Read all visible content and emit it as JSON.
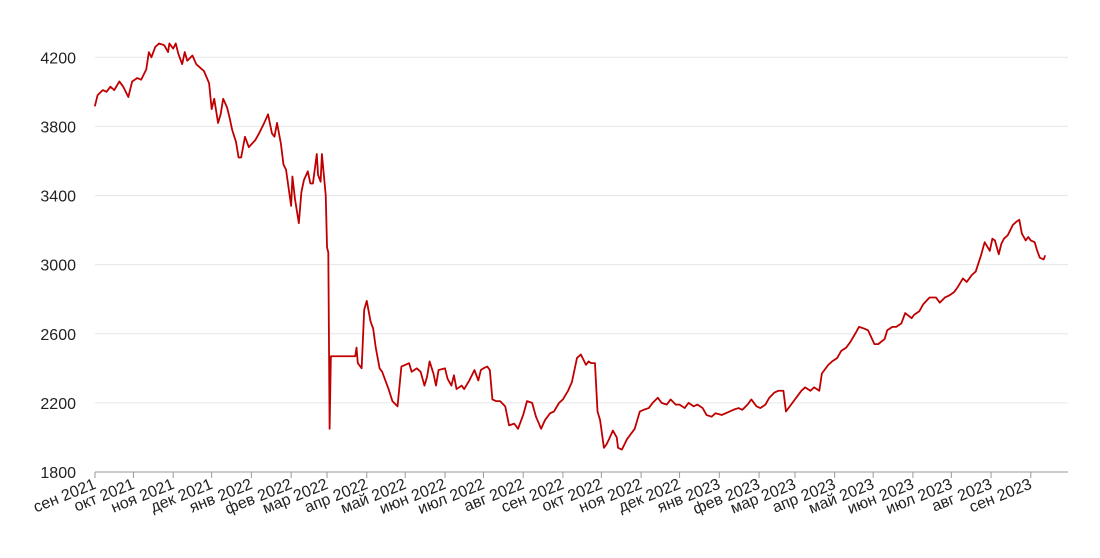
{
  "chart_data": {
    "type": "line",
    "title": "",
    "xlabel": "",
    "ylabel": "",
    "ylim": [
      1800,
      4300
    ],
    "yticks": [
      1800,
      2200,
      2600,
      3000,
      3400,
      3800,
      4200
    ],
    "y_tick_labels": [
      "1800",
      "2200",
      "2600",
      "3000",
      "3400",
      "3800",
      "4200"
    ],
    "x_range": [
      "2021-09-01",
      "2023-09-30"
    ],
    "x_tick_dates": [
      "2021-09-01",
      "2021-10-01",
      "2021-11-01",
      "2021-12-01",
      "2022-01-01",
      "2022-02-01",
      "2022-03-01",
      "2022-04-01",
      "2022-05-01",
      "2022-06-01",
      "2022-07-01",
      "2022-08-01",
      "2022-09-01",
      "2022-10-01",
      "2022-11-01",
      "2022-12-01",
      "2023-01-01",
      "2023-02-01",
      "2023-03-01",
      "2023-04-01",
      "2023-05-01",
      "2023-06-01",
      "2023-07-01",
      "2023-08-01",
      "2023-09-01"
    ],
    "x_tick_labels": [
      "сен 2021",
      "окт 2021",
      "ноя 2021",
      "дек 2021",
      "янв 2022",
      "фев 2022",
      "мар 2022",
      "апр 2022",
      "май 2022",
      "июн 2022",
      "июл 2022",
      "авг 2022",
      "сен 2022",
      "окт 2022",
      "ноя 2022",
      "дек 2022",
      "янв 2023",
      "фев 2023",
      "мар 2023",
      "апр 2023",
      "май 2023",
      "июн 2023",
      "июл 2023",
      "авг 2023",
      "сен 2023"
    ],
    "grid": true,
    "legend": "none",
    "series": [
      {
        "color": "#c00000",
        "points": [
          [
            "2021-09-01",
            3920
          ],
          [
            "2021-09-03",
            3980
          ],
          [
            "2021-09-07",
            4010
          ],
          [
            "2021-09-10",
            4000
          ],
          [
            "2021-09-13",
            4030
          ],
          [
            "2021-09-16",
            4010
          ],
          [
            "2021-09-20",
            4060
          ],
          [
            "2021-09-23",
            4030
          ],
          [
            "2021-09-27",
            3970
          ],
          [
            "2021-09-30",
            4060
          ],
          [
            "2021-10-04",
            4080
          ],
          [
            "2021-10-07",
            4070
          ],
          [
            "2021-10-11",
            4130
          ],
          [
            "2021-10-13",
            4230
          ],
          [
            "2021-10-15",
            4200
          ],
          [
            "2021-10-18",
            4260
          ],
          [
            "2021-10-21",
            4280
          ],
          [
            "2021-10-25",
            4270
          ],
          [
            "2021-10-28",
            4230
          ],
          [
            "2021-10-29",
            4280
          ],
          [
            "2021-11-01",
            4250
          ],
          [
            "2021-11-03",
            4280
          ],
          [
            "2021-11-05",
            4220
          ],
          [
            "2021-11-08",
            4160
          ],
          [
            "2021-11-10",
            4230
          ],
          [
            "2021-11-12",
            4180
          ],
          [
            "2021-11-16",
            4210
          ],
          [
            "2021-11-19",
            4160
          ],
          [
            "2021-11-22",
            4140
          ],
          [
            "2021-11-25",
            4120
          ],
          [
            "2021-11-29",
            4050
          ],
          [
            "2021-12-01",
            3900
          ],
          [
            "2021-12-03",
            3960
          ],
          [
            "2021-12-06",
            3820
          ],
          [
            "2021-12-08",
            3870
          ],
          [
            "2021-12-10",
            3960
          ],
          [
            "2021-12-13",
            3910
          ],
          [
            "2021-12-15",
            3850
          ],
          [
            "2021-12-17",
            3780
          ],
          [
            "2021-12-20",
            3710
          ],
          [
            "2021-12-22",
            3620
          ],
          [
            "2021-12-24",
            3620
          ],
          [
            "2021-12-27",
            3740
          ],
          [
            "2021-12-30",
            3680
          ],
          [
            "2022-01-04",
            3720
          ],
          [
            "2022-01-07",
            3760
          ],
          [
            "2022-01-11",
            3820
          ],
          [
            "2022-01-14",
            3870
          ],
          [
            "2022-01-17",
            3760
          ],
          [
            "2022-01-19",
            3740
          ],
          [
            "2022-01-21",
            3820
          ],
          [
            "2022-01-24",
            3700
          ],
          [
            "2022-01-26",
            3580
          ],
          [
            "2022-01-28",
            3550
          ],
          [
            "2022-02-01",
            3340
          ],
          [
            "2022-02-02",
            3510
          ],
          [
            "2022-02-04",
            3380
          ],
          [
            "2022-02-07",
            3240
          ],
          [
            "2022-02-09",
            3420
          ],
          [
            "2022-02-11",
            3490
          ],
          [
            "2022-02-14",
            3540
          ],
          [
            "2022-02-16",
            3470
          ],
          [
            "2022-02-18",
            3470
          ],
          [
            "2022-02-21",
            3640
          ],
          [
            "2022-02-22",
            3520
          ],
          [
            "2022-02-24",
            3480
          ],
          [
            "2022-02-25",
            3640
          ],
          [
            "2022-02-28",
            3400
          ],
          [
            "2022-03-01",
            3100
          ],
          [
            "2022-03-02",
            3070
          ],
          [
            "2022-03-03",
            2050
          ],
          [
            "2022-03-04",
            2470
          ],
          [
            "2022-03-10",
            2470
          ],
          [
            "2022-03-20",
            2470
          ],
          [
            "2022-03-23",
            2470
          ],
          [
            "2022-03-24",
            2520
          ],
          [
            "2022-03-25",
            2430
          ],
          [
            "2022-03-28",
            2400
          ],
          [
            "2022-03-30",
            2740
          ],
          [
            "2022-04-01",
            2790
          ],
          [
            "2022-04-04",
            2670
          ],
          [
            "2022-04-06",
            2630
          ],
          [
            "2022-04-08",
            2520
          ],
          [
            "2022-04-11",
            2400
          ],
          [
            "2022-04-13",
            2380
          ],
          [
            "2022-04-15",
            2340
          ],
          [
            "2022-04-18",
            2280
          ],
          [
            "2022-04-21",
            2210
          ],
          [
            "2022-04-25",
            2180
          ],
          [
            "2022-04-28",
            2410
          ],
          [
            "2022-05-04",
            2430
          ],
          [
            "2022-05-06",
            2380
          ],
          [
            "2022-05-10",
            2400
          ],
          [
            "2022-05-13",
            2380
          ],
          [
            "2022-05-16",
            2300
          ],
          [
            "2022-05-18",
            2350
          ],
          [
            "2022-05-20",
            2440
          ],
          [
            "2022-05-23",
            2370
          ],
          [
            "2022-05-25",
            2300
          ],
          [
            "2022-05-27",
            2390
          ],
          [
            "2022-06-01",
            2400
          ],
          [
            "2022-06-03",
            2340
          ],
          [
            "2022-06-06",
            2300
          ],
          [
            "2022-06-08",
            2360
          ],
          [
            "2022-06-10",
            2280
          ],
          [
            "2022-06-14",
            2300
          ],
          [
            "2022-06-16",
            2280
          ],
          [
            "2022-06-20",
            2330
          ],
          [
            "2022-06-22",
            2360
          ],
          [
            "2022-06-24",
            2390
          ],
          [
            "2022-06-27",
            2330
          ],
          [
            "2022-06-29",
            2390
          ],
          [
            "2022-07-01",
            2400
          ],
          [
            "2022-07-04",
            2410
          ],
          [
            "2022-07-06",
            2390
          ],
          [
            "2022-07-08",
            2220
          ],
          [
            "2022-07-11",
            2210
          ],
          [
            "2022-07-14",
            2210
          ],
          [
            "2022-07-18",
            2180
          ],
          [
            "2022-07-21",
            2070
          ],
          [
            "2022-07-25",
            2080
          ],
          [
            "2022-07-28",
            2050
          ],
          [
            "2022-08-01",
            2130
          ],
          [
            "2022-08-04",
            2210
          ],
          [
            "2022-08-08",
            2200
          ],
          [
            "2022-08-11",
            2120
          ],
          [
            "2022-08-15",
            2050
          ],
          [
            "2022-08-18",
            2100
          ],
          [
            "2022-08-22",
            2140
          ],
          [
            "2022-08-25",
            2150
          ],
          [
            "2022-08-29",
            2200
          ],
          [
            "2022-09-01",
            2220
          ],
          [
            "2022-09-05",
            2270
          ],
          [
            "2022-09-08",
            2320
          ],
          [
            "2022-09-12",
            2460
          ],
          [
            "2022-09-15",
            2480
          ],
          [
            "2022-09-19",
            2420
          ],
          [
            "2022-09-21",
            2440
          ],
          [
            "2022-09-23",
            2430
          ],
          [
            "2022-09-26",
            2430
          ],
          [
            "2022-09-28",
            2150
          ],
          [
            "2022-09-30",
            2100
          ],
          [
            "2022-10-03",
            1940
          ],
          [
            "2022-10-05",
            1960
          ],
          [
            "2022-10-07",
            1990
          ],
          [
            "2022-10-10",
            2040
          ],
          [
            "2022-10-13",
            2000
          ],
          [
            "2022-10-14",
            1940
          ],
          [
            "2022-10-17",
            1930
          ],
          [
            "2022-10-19",
            1960
          ],
          [
            "2022-10-21",
            1990
          ],
          [
            "2022-10-24",
            2020
          ],
          [
            "2022-10-27",
            2050
          ],
          [
            "2022-10-31",
            2150
          ],
          [
            "2022-11-03",
            2160
          ],
          [
            "2022-11-07",
            2170
          ],
          [
            "2022-11-10",
            2200
          ],
          [
            "2022-11-14",
            2230
          ],
          [
            "2022-11-17",
            2200
          ],
          [
            "2022-11-21",
            2190
          ],
          [
            "2022-11-24",
            2220
          ],
          [
            "2022-11-28",
            2190
          ],
          [
            "2022-12-01",
            2190
          ],
          [
            "2022-12-05",
            2170
          ],
          [
            "2022-12-08",
            2200
          ],
          [
            "2022-12-12",
            2180
          ],
          [
            "2022-12-15",
            2190
          ],
          [
            "2022-12-19",
            2170
          ],
          [
            "2022-12-22",
            2130
          ],
          [
            "2022-12-26",
            2120
          ],
          [
            "2022-12-29",
            2140
          ],
          [
            "2023-01-03",
            2130
          ],
          [
            "2023-01-09",
            2150
          ],
          [
            "2023-01-12",
            2160
          ],
          [
            "2023-01-16",
            2170
          ],
          [
            "2023-01-19",
            2160
          ],
          [
            "2023-01-23",
            2190
          ],
          [
            "2023-01-26",
            2220
          ],
          [
            "2023-01-30",
            2180
          ],
          [
            "2023-02-02",
            2170
          ],
          [
            "2023-02-06",
            2190
          ],
          [
            "2023-02-09",
            2230
          ],
          [
            "2023-02-13",
            2260
          ],
          [
            "2023-02-16",
            2270
          ],
          [
            "2023-02-20",
            2270
          ],
          [
            "2023-02-22",
            2150
          ],
          [
            "2023-02-27",
            2200
          ],
          [
            "2023-03-02",
            2230
          ],
          [
            "2023-03-06",
            2270
          ],
          [
            "2023-03-09",
            2290
          ],
          [
            "2023-03-13",
            2270
          ],
          [
            "2023-03-16",
            2290
          ],
          [
            "2023-03-20",
            2270
          ],
          [
            "2023-03-22",
            2370
          ],
          [
            "2023-03-27",
            2420
          ],
          [
            "2023-03-30",
            2440
          ],
          [
            "2023-04-03",
            2460
          ],
          [
            "2023-04-06",
            2500
          ],
          [
            "2023-04-10",
            2520
          ],
          [
            "2023-04-13",
            2550
          ],
          [
            "2023-04-17",
            2600
          ],
          [
            "2023-04-20",
            2640
          ],
          [
            "2023-04-24",
            2630
          ],
          [
            "2023-04-27",
            2620
          ],
          [
            "2023-05-02",
            2540
          ],
          [
            "2023-05-05",
            2540
          ],
          [
            "2023-05-10",
            2570
          ],
          [
            "2023-05-12",
            2620
          ],
          [
            "2023-05-16",
            2640
          ],
          [
            "2023-05-19",
            2640
          ],
          [
            "2023-05-23",
            2660
          ],
          [
            "2023-05-26",
            2720
          ],
          [
            "2023-05-31",
            2690
          ],
          [
            "2023-06-02",
            2710
          ],
          [
            "2023-06-06",
            2730
          ],
          [
            "2023-06-09",
            2770
          ],
          [
            "2023-06-14",
            2810
          ],
          [
            "2023-06-19",
            2810
          ],
          [
            "2023-06-22",
            2780
          ],
          [
            "2023-06-26",
            2810
          ],
          [
            "2023-06-29",
            2820
          ],
          [
            "2023-07-03",
            2840
          ],
          [
            "2023-07-06",
            2870
          ],
          [
            "2023-07-10",
            2920
          ],
          [
            "2023-07-13",
            2900
          ],
          [
            "2023-07-17",
            2940
          ],
          [
            "2023-07-20",
            2960
          ],
          [
            "2023-07-24",
            3050
          ],
          [
            "2023-07-27",
            3130
          ],
          [
            "2023-07-31",
            3080
          ],
          [
            "2023-08-02",
            3150
          ],
          [
            "2023-08-04",
            3140
          ],
          [
            "2023-08-07",
            3060
          ],
          [
            "2023-08-09",
            3120
          ],
          [
            "2023-08-11",
            3150
          ],
          [
            "2023-08-14",
            3170
          ],
          [
            "2023-08-16",
            3200
          ],
          [
            "2023-08-18",
            3230
          ],
          [
            "2023-08-21",
            3250
          ],
          [
            "2023-08-23",
            3260
          ],
          [
            "2023-08-25",
            3180
          ],
          [
            "2023-08-28",
            3140
          ],
          [
            "2023-08-30",
            3160
          ],
          [
            "2023-09-01",
            3140
          ],
          [
            "2023-09-04",
            3130
          ],
          [
            "2023-09-06",
            3080
          ],
          [
            "2023-09-08",
            3040
          ],
          [
            "2023-09-11",
            3030
          ],
          [
            "2023-09-12",
            3050
          ]
        ]
      }
    ]
  }
}
